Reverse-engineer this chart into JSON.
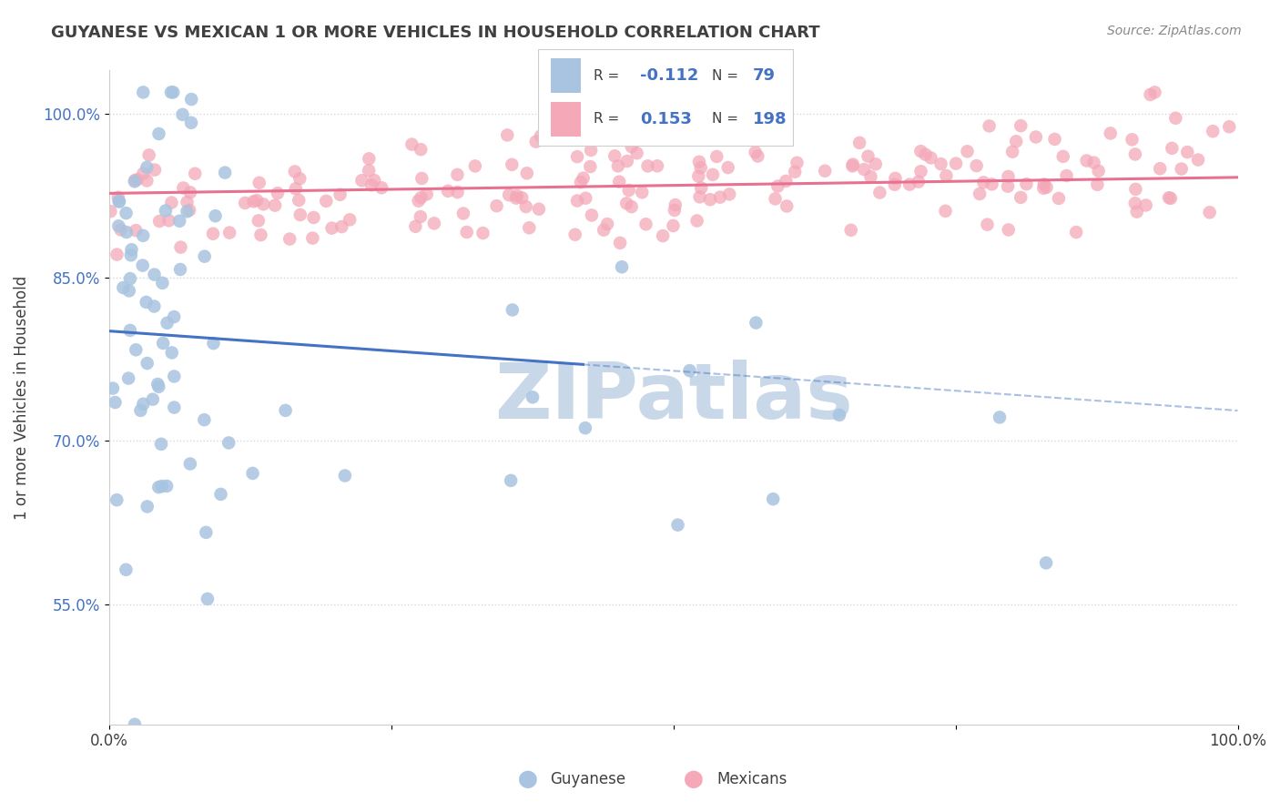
{
  "title": "GUYANESE VS MEXICAN 1 OR MORE VEHICLES IN HOUSEHOLD CORRELATION CHART",
  "source": "Source: ZipAtlas.com",
  "ylabel": "1 or more Vehicles in Household",
  "xlim": [
    0.0,
    1.0
  ],
  "ylim": [
    0.44,
    1.04
  ],
  "yticks": [
    0.55,
    0.7,
    0.85,
    1.0
  ],
  "ytick_labels": [
    "55.0%",
    "70.0%",
    "85.0%",
    "100.0%"
  ],
  "xticks": [
    0.0,
    0.25,
    0.5,
    0.75,
    1.0
  ],
  "xtick_labels": [
    "0.0%",
    "",
    "",
    "",
    "100.0%"
  ],
  "guyanese_color": "#a8c4e0",
  "mexican_color": "#f4a8b8",
  "guyanese_R": -0.112,
  "guyanese_N": 79,
  "mexican_R": 0.153,
  "mexican_N": 198,
  "blue_line_color": "#4472c4",
  "pink_line_color": "#e87090",
  "watermark": "ZIPatlas",
  "watermark_color": "#c8d8e8",
  "background_color": "#ffffff",
  "grid_color": "#d0d8e0",
  "title_color": "#404040",
  "title_fontsize": 13,
  "legend_R_color": "#4472c4",
  "blue_seed": 42,
  "pink_seed": 7
}
